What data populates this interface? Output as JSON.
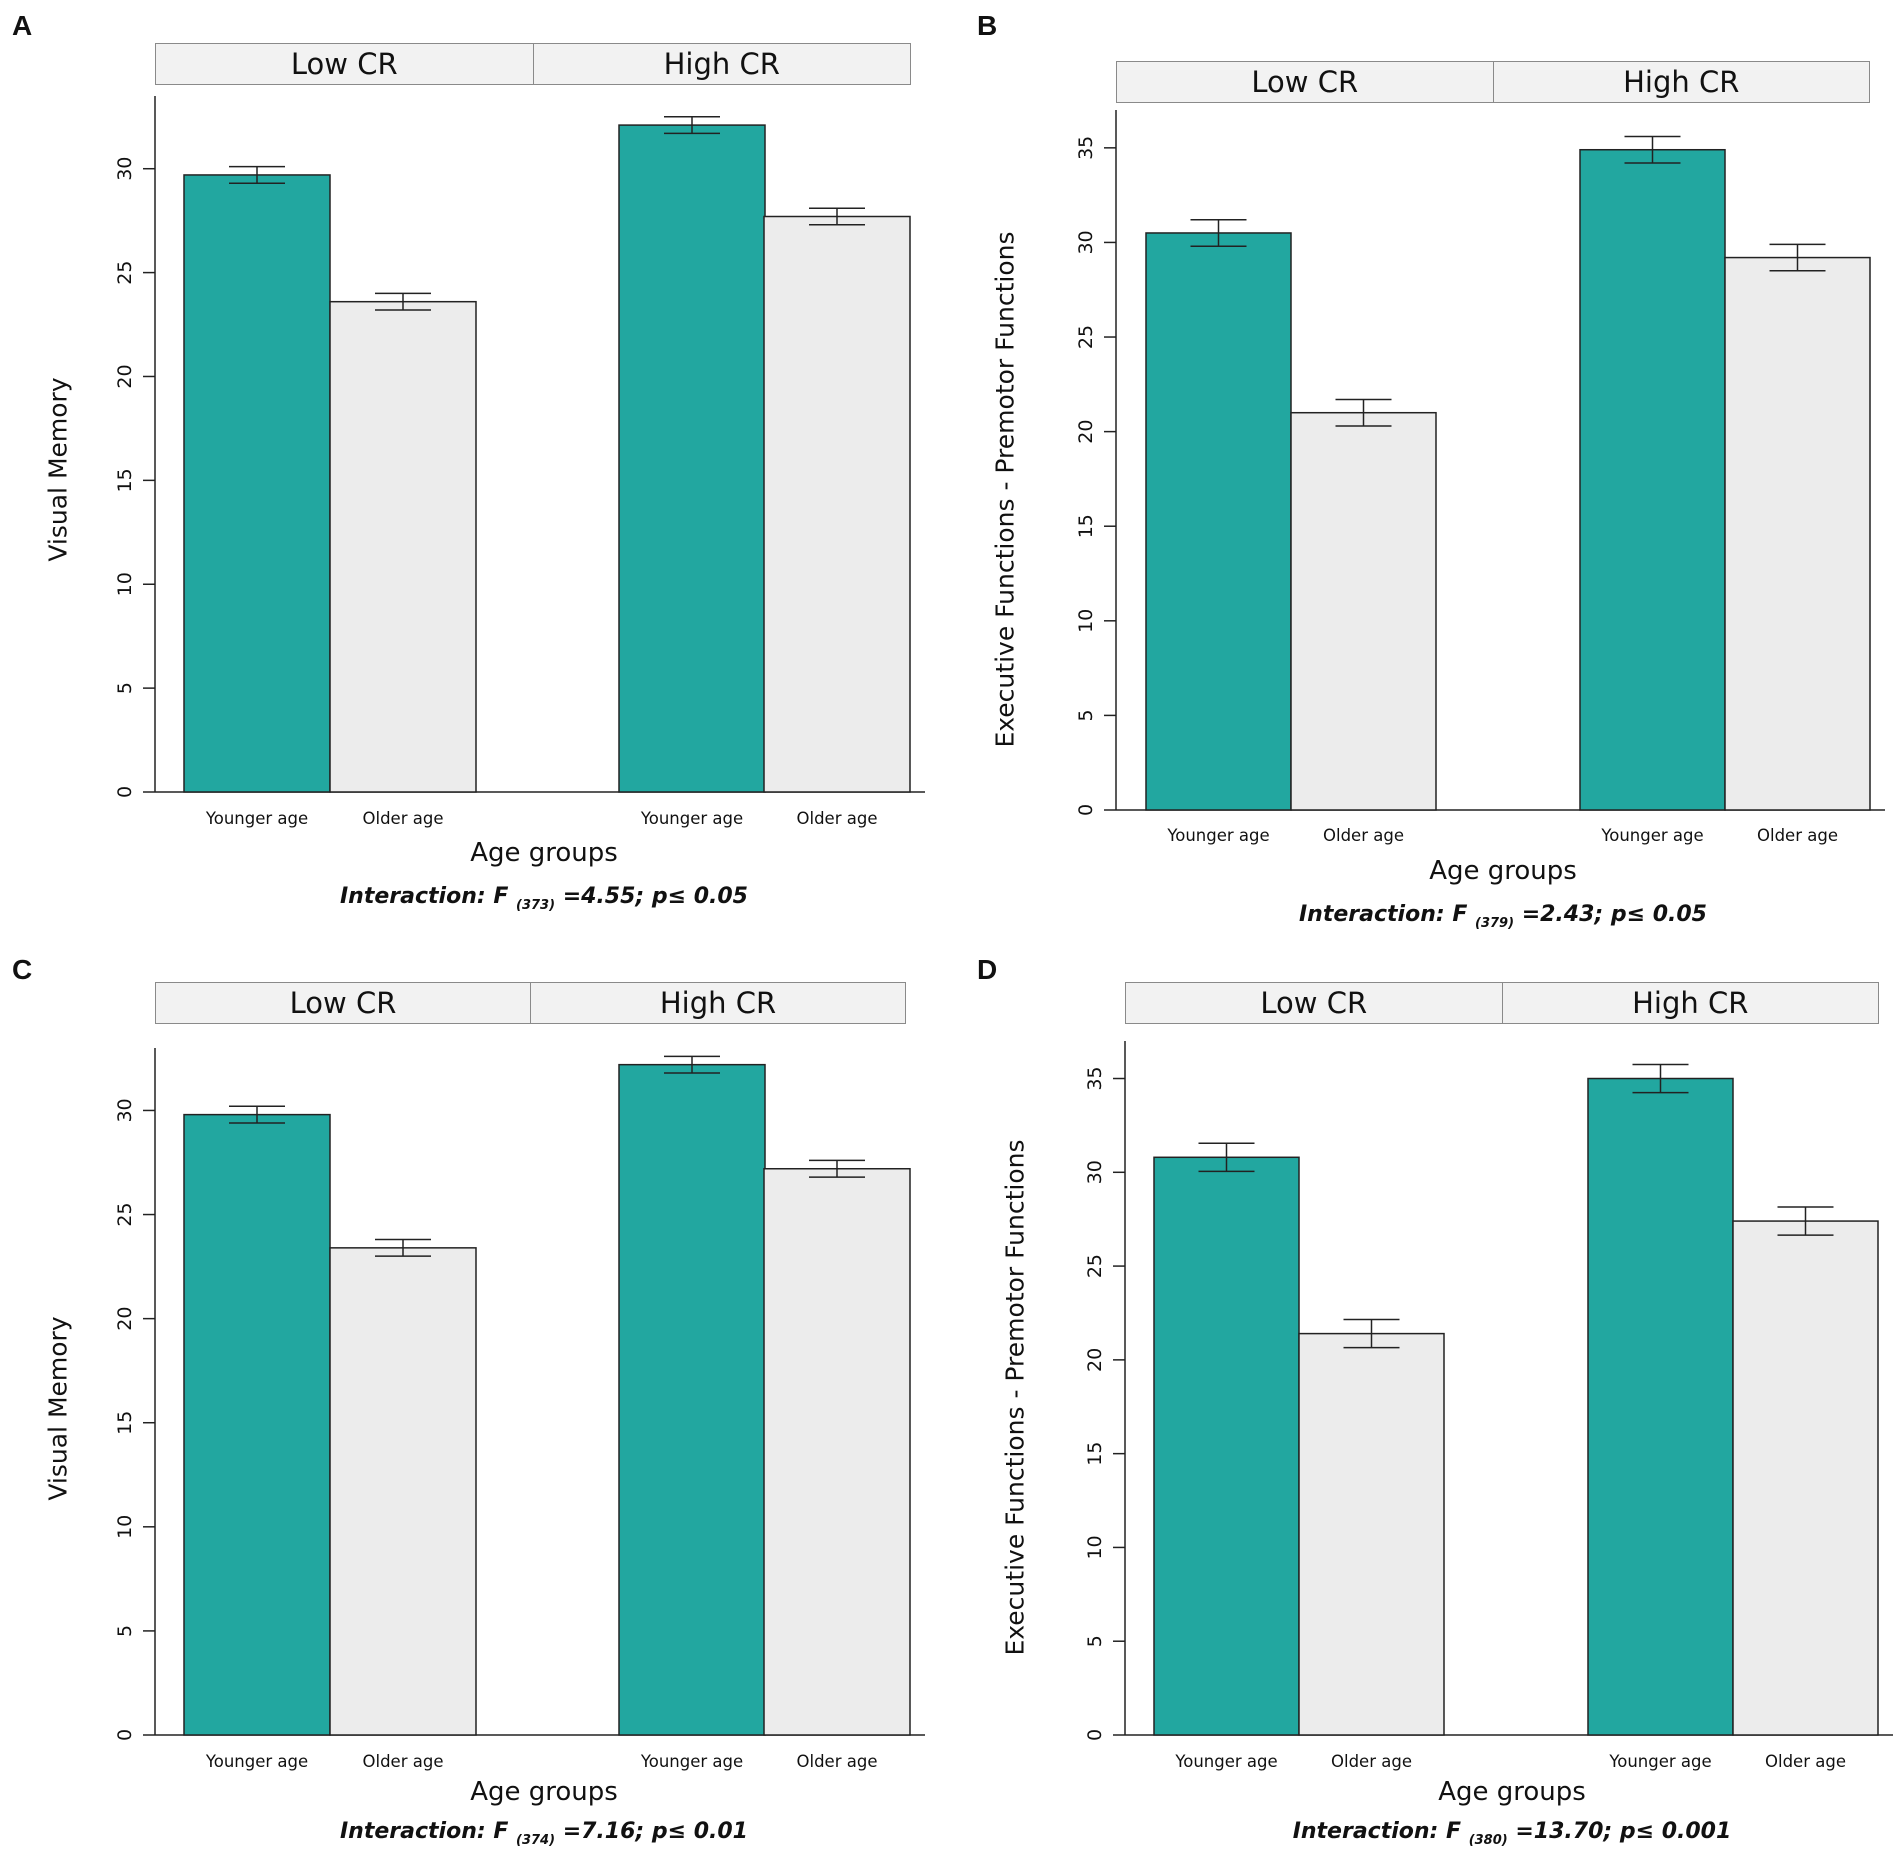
{
  "colors": {
    "younger": "#22a7a0",
    "older": "#ececec"
  },
  "panels": [
    {
      "id": "A",
      "strips": [
        "Low CR",
        "High CR"
      ],
      "ylabel": "Visual Memory",
      "xlabel": "Age groups",
      "interaction": {
        "pre": "Interaction: F ",
        "df": "(373)",
        "post": " =4.55; p≤ 0.05"
      },
      "ylim": [
        0,
        33.5
      ],
      "ticks": [
        0,
        5,
        10,
        15,
        20,
        25,
        30
      ],
      "bar_labels": [
        "Younger age",
        "Older age",
        "Younger age",
        "Older age"
      ]
    },
    {
      "id": "B",
      "strips": [
        "Low CR",
        "High CR"
      ],
      "ylabel": "Executive Functions - Premotor Functions",
      "xlabel": "Age groups",
      "interaction": {
        "pre": "Interaction: F ",
        "df": "(379)",
        "post": " =2.43; p≤ 0.05"
      },
      "ylim": [
        0,
        37
      ],
      "ticks": [
        0,
        5,
        10,
        15,
        20,
        25,
        30,
        35
      ],
      "bar_labels": [
        "Younger age",
        "Older age",
        "Younger age",
        "Older age"
      ]
    },
    {
      "id": "C",
      "strips": [
        "Low CR",
        "High CR"
      ],
      "ylabel": "Visual Memory",
      "xlabel": "Age groups",
      "interaction": {
        "pre": "Interaction: F ",
        "df": "(374)",
        "post": " =7.16; p≤ 0.01"
      },
      "ylim": [
        0,
        33
      ],
      "ticks": [
        0,
        5,
        10,
        15,
        20,
        25,
        30
      ],
      "bar_labels": [
        "Younger age",
        "Older age",
        "Younger age",
        "Older age"
      ]
    },
    {
      "id": "D",
      "strips": [
        "Low CR",
        "High CR"
      ],
      "ylabel": "Executive Functions - Premotor Functions",
      "xlabel": "Age groups",
      "interaction": {
        "pre": "Interaction: F ",
        "df": "(380)",
        "post": " =13.70; p≤ 0.001"
      },
      "ylim": [
        0,
        37
      ],
      "ticks": [
        0,
        5,
        10,
        15,
        20,
        25,
        30,
        35
      ],
      "bar_labels": [
        "Younger age",
        "Older age",
        "Younger age",
        "Older age"
      ]
    }
  ],
  "chart_data": [
    {
      "type": "bar",
      "panel": "A",
      "title": "",
      "facets": [
        "Low CR",
        "High CR"
      ],
      "categories": [
        "Younger age",
        "Older age"
      ],
      "series": [
        {
          "name": "Low CR",
          "values": [
            29.7,
            23.6
          ],
          "error": [
            0.4,
            0.4
          ]
        },
        {
          "name": "High CR",
          "values": [
            32.1,
            27.7
          ],
          "error": [
            0.4,
            0.4
          ]
        }
      ],
      "xlabel": "Age groups",
      "ylabel": "Visual Memory",
      "ylim": [
        0,
        33.5
      ]
    },
    {
      "type": "bar",
      "panel": "B",
      "title": "",
      "facets": [
        "Low CR",
        "High CR"
      ],
      "categories": [
        "Younger age",
        "Older age"
      ],
      "series": [
        {
          "name": "Low CR",
          "values": [
            30.5,
            21.0
          ],
          "error": [
            0.7,
            0.7
          ]
        },
        {
          "name": "High CR",
          "values": [
            34.9,
            29.2
          ],
          "error": [
            0.7,
            0.7
          ]
        }
      ],
      "xlabel": "Age groups",
      "ylabel": "Executive Functions - Premotor Functions",
      "ylim": [
        0,
        37
      ]
    },
    {
      "type": "bar",
      "panel": "C",
      "title": "",
      "facets": [
        "Low CR",
        "High CR"
      ],
      "categories": [
        "Younger age",
        "Older age"
      ],
      "series": [
        {
          "name": "Low CR",
          "values": [
            29.8,
            23.4
          ],
          "error": [
            0.4,
            0.4
          ]
        },
        {
          "name": "High CR",
          "values": [
            32.2,
            27.2
          ],
          "error": [
            0.4,
            0.4
          ]
        }
      ],
      "xlabel": "Age groups",
      "ylabel": "Visual Memory",
      "ylim": [
        0,
        33
      ]
    },
    {
      "type": "bar",
      "panel": "D",
      "title": "",
      "facets": [
        "Low CR",
        "High CR"
      ],
      "categories": [
        "Younger age",
        "Older age"
      ],
      "series": [
        {
          "name": "Low CR",
          "values": [
            30.8,
            21.4
          ],
          "error": [
            0.75,
            0.75
          ]
        },
        {
          "name": "High CR",
          "values": [
            35.0,
            27.4
          ],
          "error": [
            0.75,
            0.75
          ]
        }
      ],
      "xlabel": "Age groups",
      "ylabel": "Executive Functions - Premotor Functions",
      "ylim": [
        0,
        37
      ]
    }
  ]
}
